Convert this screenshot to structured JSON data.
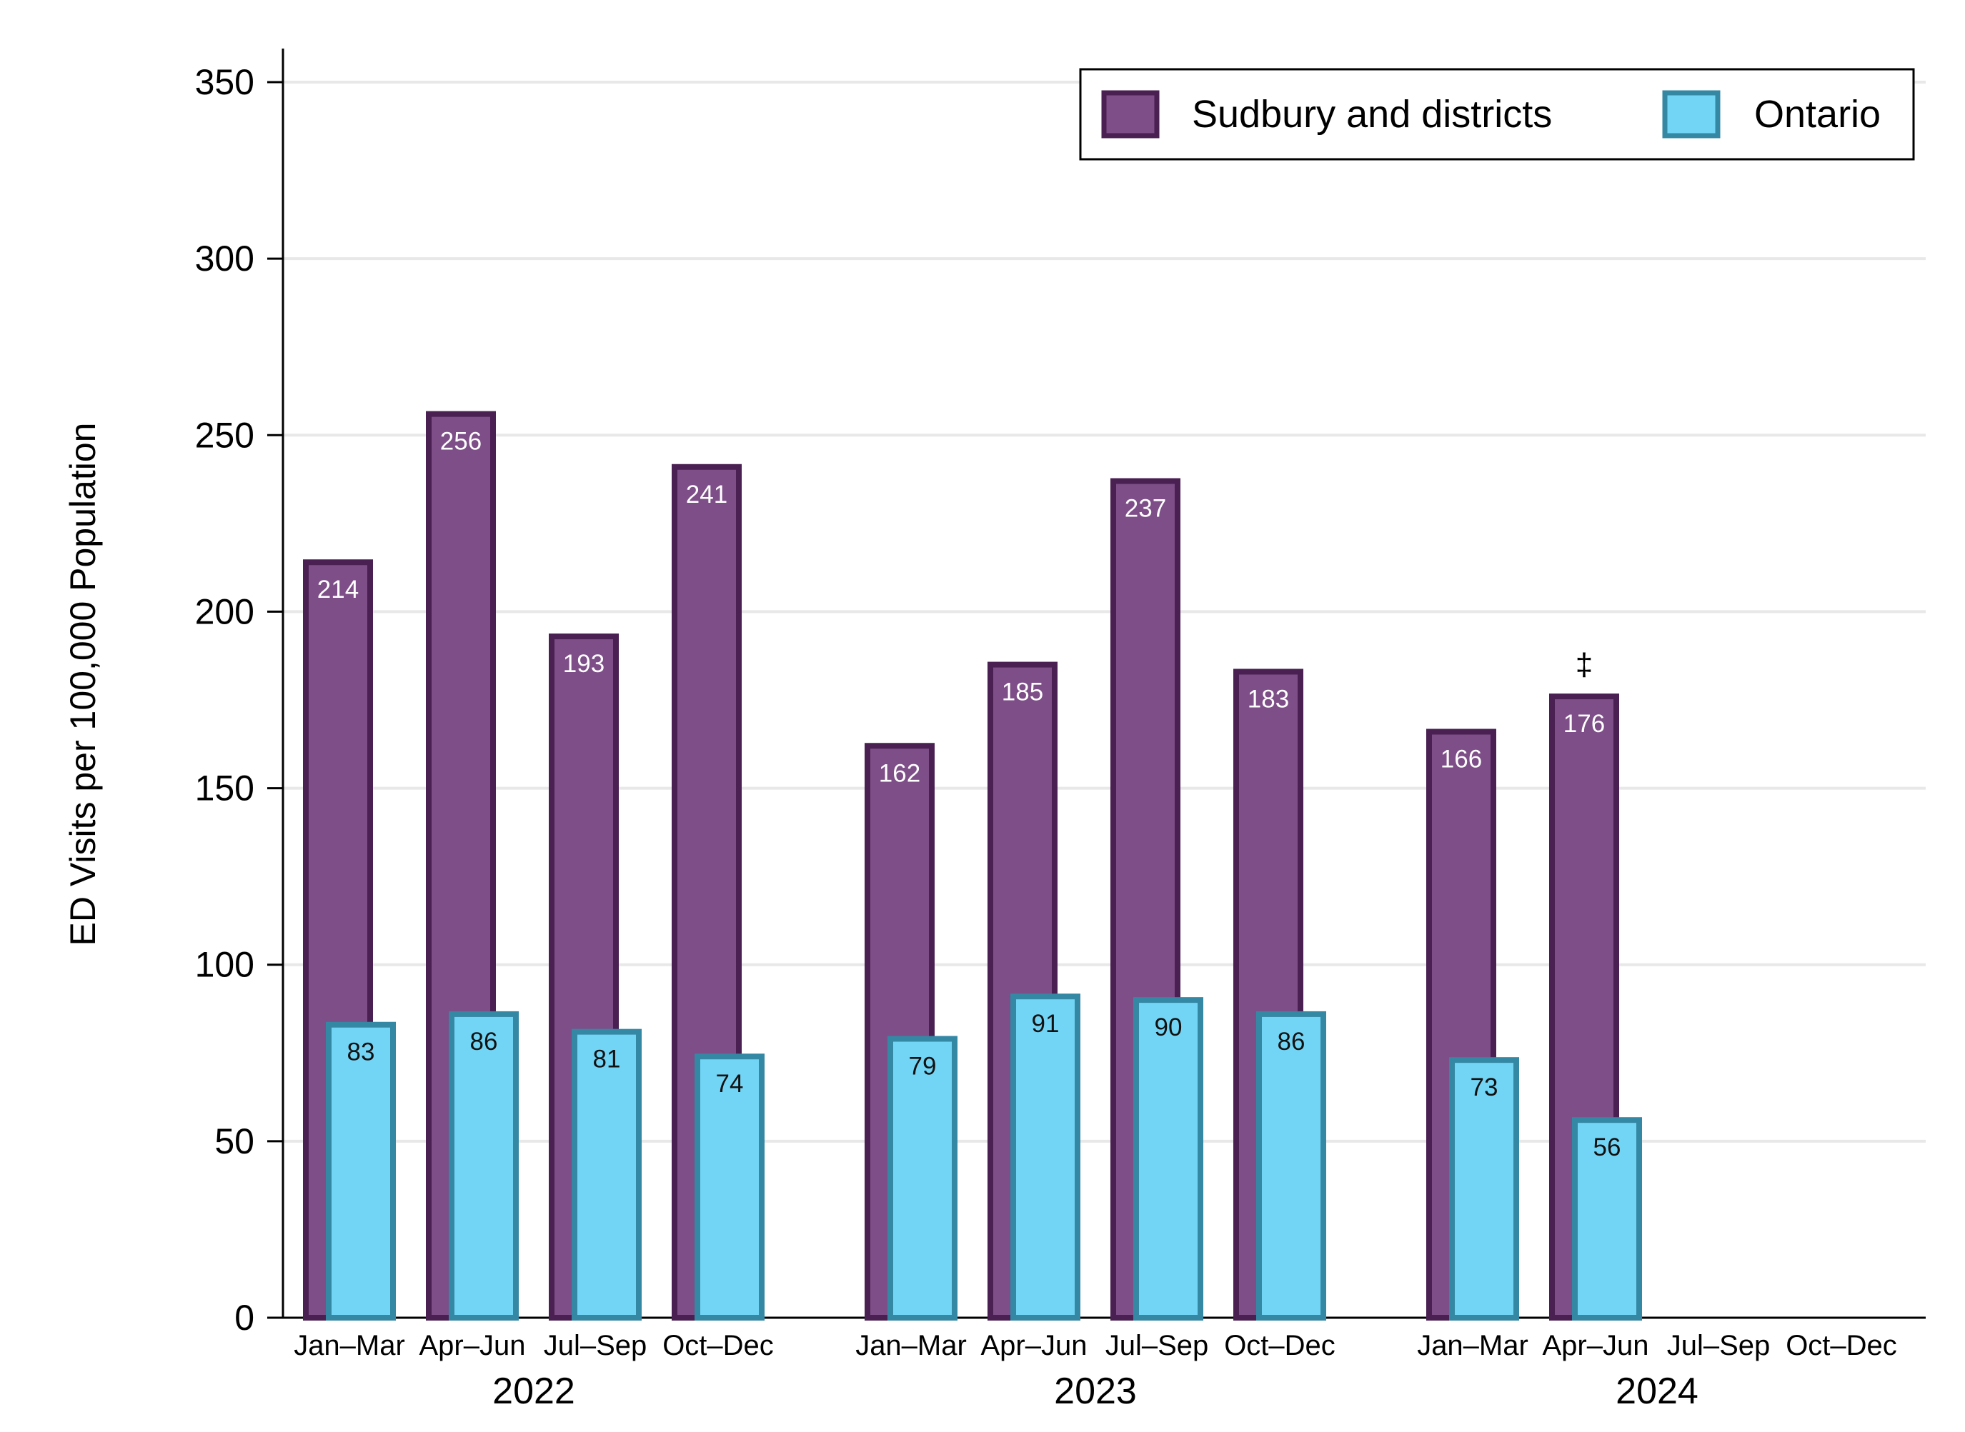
{
  "chart_data": {
    "type": "bar",
    "ylabel": "ED Visits per 100,000 Population",
    "xlabel": "",
    "ylim": [
      0,
      350
    ],
    "yticks": [
      0,
      50,
      100,
      150,
      200,
      250,
      300,
      350
    ],
    "grid": true,
    "legend_position": "top-right",
    "groups": [
      {
        "year": "2022",
        "quarters": [
          "Jan–Mar",
          "Apr–Jun",
          "Jul–Sep",
          "Oct–Dec"
        ]
      },
      {
        "year": "2023",
        "quarters": [
          "Jan–Mar",
          "Apr–Jun",
          "Jul–Sep",
          "Oct–Dec"
        ]
      },
      {
        "year": "2024",
        "quarters": [
          "Jan–Mar",
          "Apr–Jun",
          "Jul–Sep",
          "Oct–Dec"
        ]
      }
    ],
    "series": [
      {
        "name": "Sudbury and districts",
        "fill": "#7d4e87",
        "stroke": "#4a1f52",
        "label_color": "#ffffff",
        "values": [
          214,
          256,
          193,
          241,
          162,
          185,
          237,
          183,
          166,
          176,
          null,
          null
        ]
      },
      {
        "name": "Ontario",
        "fill": "#73d5f5",
        "stroke": "#3488a4",
        "label_color": "#111111",
        "values": [
          83,
          86,
          81,
          74,
          79,
          91,
          90,
          86,
          73,
          56,
          null,
          null
        ]
      }
    ],
    "annotations": [
      {
        "text": "‡",
        "series": 0,
        "index": 9
      }
    ]
  }
}
